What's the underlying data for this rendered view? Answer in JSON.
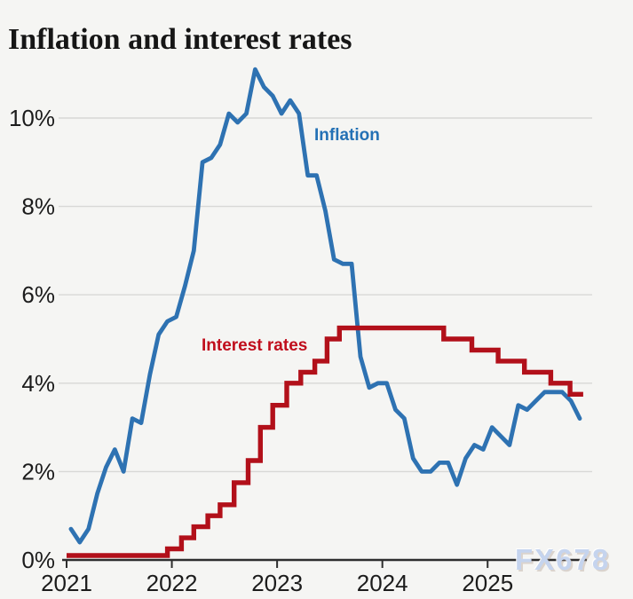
{
  "page": {
    "title": "Inflation and interest rates",
    "watermark": "FX678"
  },
  "colors": {
    "background": "#f5f5f3",
    "grid": "#d8d8d6",
    "axis": "#2e2e2e",
    "tick_text": "#1c1c1c",
    "title_text": "#161616",
    "inflation": "#2e72b2",
    "inflation_label": "#2471b5",
    "rates": "#b2101a",
    "rates_label": "#c00e1c",
    "watermark": "#c5d4ee"
  },
  "chart_data": {
    "type": "line",
    "title": "Inflation and interest rates",
    "x_axis": {
      "tick_labels": [
        "2021",
        "2022",
        "2023",
        "2024",
        "2025"
      ],
      "tick_months": [
        0,
        12,
        24,
        36,
        48
      ],
      "range_months": [
        0,
        60
      ]
    },
    "y_axis": {
      "tick_labels": [
        "0%",
        "2%",
        "4%",
        "6%",
        "8%",
        "10%"
      ],
      "tick_values": [
        0,
        2,
        4,
        6,
        8,
        10
      ],
      "range": [
        0,
        11.6
      ],
      "unit": "%"
    },
    "grid": true,
    "legend_position": "inline-labels",
    "series": [
      {
        "name": "Inflation",
        "kind": "monthly-line",
        "color": "#2e72b2",
        "start_month": "2021-01",
        "values": [
          0.7,
          0.4,
          0.7,
          1.5,
          2.1,
          2.5,
          2.0,
          3.2,
          3.1,
          4.2,
          5.1,
          5.4,
          5.5,
          6.2,
          7.0,
          9.0,
          9.1,
          9.4,
          10.1,
          9.9,
          10.1,
          11.1,
          10.7,
          10.5,
          10.1,
          10.4,
          10.1,
          8.7,
          8.7,
          7.9,
          6.8,
          6.7,
          6.7,
          4.6,
          3.9,
          4.0,
          4.0,
          3.4,
          3.2,
          2.3,
          2.0,
          2.0,
          2.2,
          2.2,
          1.7,
          2.3,
          2.6,
          2.5,
          3.0,
          2.8,
          2.6,
          3.5,
          3.4,
          3.6,
          3.8,
          3.8,
          3.8,
          3.6,
          3.2
        ]
      },
      {
        "name": "Interest rates",
        "kind": "step",
        "color": "#b2101a",
        "steps": [
          {
            "m": 0.0,
            "rate": 0.1
          },
          {
            "m": 11.5,
            "rate": 0.25
          },
          {
            "m": 13.1,
            "rate": 0.5
          },
          {
            "m": 14.5,
            "rate": 0.75
          },
          {
            "m": 16.1,
            "rate": 1.0
          },
          {
            "m": 17.5,
            "rate": 1.25
          },
          {
            "m": 19.1,
            "rate": 1.75
          },
          {
            "m": 20.7,
            "rate": 2.25
          },
          {
            "m": 22.1,
            "rate": 3.0
          },
          {
            "m": 23.5,
            "rate": 3.5
          },
          {
            "m": 25.1,
            "rate": 4.0
          },
          {
            "m": 26.7,
            "rate": 4.25
          },
          {
            "m": 28.3,
            "rate": 4.5
          },
          {
            "m": 29.7,
            "rate": 5.0
          },
          {
            "m": 31.1,
            "rate": 5.25
          },
          {
            "m": 43.0,
            "rate": 5.0
          },
          {
            "m": 46.2,
            "rate": 4.75
          },
          {
            "m": 49.2,
            "rate": 4.5
          },
          {
            "m": 52.2,
            "rate": 4.25
          },
          {
            "m": 55.2,
            "rate": 4.0
          },
          {
            "m": 57.4,
            "rate": 3.75
          }
        ],
        "end_m": 58.9
      }
    ]
  }
}
